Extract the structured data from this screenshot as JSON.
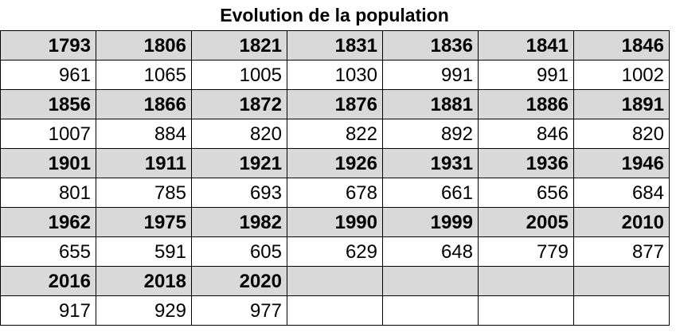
{
  "table": {
    "title": "Evolution de la population",
    "blocks": [
      {
        "years": [
          1793,
          1806,
          1821,
          1831,
          1836,
          1841,
          1846
        ],
        "values": [
          961,
          1065,
          1005,
          1030,
          991,
          991,
          1002
        ]
      },
      {
        "years": [
          1856,
          1866,
          1872,
          1876,
          1881,
          1886,
          1891
        ],
        "values": [
          1007,
          884,
          820,
          822,
          892,
          846,
          820
        ]
      },
      {
        "years": [
          1901,
          1911,
          1921,
          1926,
          1931,
          1936,
          1946
        ],
        "values": [
          801,
          785,
          693,
          678,
          661,
          656,
          684
        ]
      },
      {
        "years": [
          1962,
          1975,
          1982,
          1990,
          1999,
          2005,
          2010
        ],
        "values": [
          655,
          591,
          605,
          629,
          648,
          779,
          877
        ]
      },
      {
        "years": [
          2016,
          2018,
          2020
        ],
        "values": [
          917,
          929,
          977
        ]
      }
    ]
  }
}
